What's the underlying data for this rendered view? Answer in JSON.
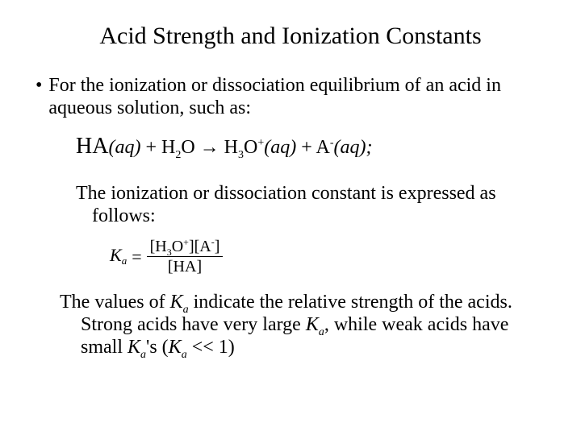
{
  "title": "Acid Strength and Ionization Constants",
  "bullet": {
    "mark": "•",
    "text": "For the ionization or dissociation equilibrium of an acid in aqueous solution, such as:"
  },
  "equation": {
    "ha": "HA",
    "aq1": "(aq)",
    "plus1": "  +  ",
    "h2o_h": "H",
    "h2o_sub": "2",
    "h2o_o": "O",
    "arrow": " → ",
    "h3o_h": "H",
    "h3o_sub": "3",
    "h3o_o": "O",
    "h3o_sup": "+",
    "aq2": "(aq)",
    "plus2": "  +  ",
    "a": "A",
    "a_sup": "-",
    "aq3": "(aq);"
  },
  "para1": "The ionization or dissociation constant is expressed as follows:",
  "formula": {
    "K": "K",
    "a": "a",
    "eq": "=",
    "num_left": "[H",
    "num_sub3": "3",
    "num_o": "O",
    "num_plus": "+",
    "num_mid": "][A",
    "num_minus": "-",
    "num_right": "]",
    "den": "[HA]"
  },
  "para2_part1": "The values of ",
  "para2_K1": "K",
  "para2_a1": "a",
  "para2_part2": " indicate the relative strength of the acids. Strong acids have very large ",
  "para2_K2": "K",
  "para2_a2": "a",
  "para2_part3": ",  while weak acids have small ",
  "para2_K3": "K",
  "para2_a3": "a",
  "para2_part4": "'s  (",
  "para2_K4": "K",
  "para2_a4": "a",
  "para2_part5": " << 1)"
}
